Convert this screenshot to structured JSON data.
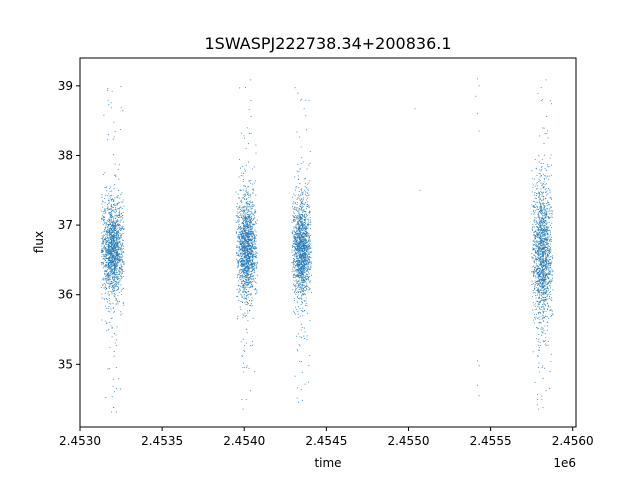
{
  "chart_data": {
    "type": "scatter",
    "title": "1SWASPJ222738.34+200836.1",
    "xlabel": "time",
    "ylabel": "flux",
    "x_offset_label": "1e6",
    "xlim": [
      2.453,
      2.45602
    ],
    "ylim": [
      34.1,
      39.4
    ],
    "x_ticks": [
      2.453,
      2.4535,
      2.454,
      2.4545,
      2.455,
      2.4555,
      2.456
    ],
    "x_tick_labels": [
      "2.4530",
      "2.4535",
      "2.4540",
      "2.4545",
      "2.4550",
      "2.4555",
      "2.4560"
    ],
    "y_ticks": [
      35,
      36,
      37,
      38,
      39
    ],
    "y_tick_labels": [
      "35",
      "36",
      "37",
      "38",
      "39"
    ],
    "grid": false,
    "marker_color": "#1f77b4",
    "observing_seasons": [
      {
        "x_range": [
          2.45313,
          2.45327
        ],
        "y_center": 36.65,
        "y_spread": 0.35,
        "y_min": 34.3,
        "y_max": 39.0
      },
      {
        "x_range": [
          2.45395,
          2.45408
        ],
        "y_center": 36.65,
        "y_spread": 0.35,
        "y_min": 34.3,
        "y_max": 39.1
      },
      {
        "x_range": [
          2.45429,
          2.45441
        ],
        "y_center": 36.65,
        "y_spread": 0.35,
        "y_min": 34.4,
        "y_max": 39.1
      },
      {
        "x_range": [
          2.45575,
          2.45588
        ],
        "y_center": 36.6,
        "y_spread": 0.5,
        "y_min": 34.3,
        "y_max": 39.1
      }
    ],
    "isolated_points": [
      {
        "x": 2.45504,
        "y": 38.67
      },
      {
        "x": 2.45507,
        "y": 37.5
      },
      {
        "x": 2.45542,
        "y": 39.1
      },
      {
        "x": 2.45543,
        "y": 39.0
      },
      {
        "x": 2.45541,
        "y": 38.85
      },
      {
        "x": 2.45542,
        "y": 38.6
      },
      {
        "x": 2.45543,
        "y": 38.35
      },
      {
        "x": 2.45542,
        "y": 35.05
      },
      {
        "x": 2.45543,
        "y": 34.98
      },
      {
        "x": 2.45542,
        "y": 34.7
      },
      {
        "x": 2.45543,
        "y": 34.55
      }
    ]
  }
}
